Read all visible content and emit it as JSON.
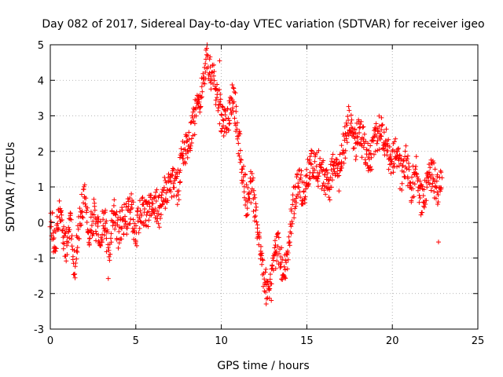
{
  "chart_data": {
    "type": "scatter",
    "title": "Day 082 of 2017, Sidereal Day-to-day VTEC variation (SDTVAR) for receiver igeo",
    "xlabel": "GPS time / hours",
    "ylabel": "SDTVAR / TECUs",
    "xlim": [
      0,
      25
    ],
    "ylim": [
      -3,
      5
    ],
    "xticks": [
      "0",
      "5",
      "10",
      "15",
      "20",
      "25"
    ],
    "yticks": [
      "-3",
      "-2",
      "-1",
      "0",
      "1",
      "2",
      "3",
      "4",
      "5"
    ],
    "grid": true,
    "marker": "plus",
    "color": "#ff0000",
    "series_trend": [
      [
        0.0,
        0.0
      ],
      [
        0.3,
        -0.5
      ],
      [
        0.6,
        0.4
      ],
      [
        0.9,
        -0.8
      ],
      [
        1.2,
        0.3
      ],
      [
        1.4,
        -1.4
      ],
      [
        1.7,
        0.0
      ],
      [
        2.0,
        0.6
      ],
      [
        2.3,
        -0.3
      ],
      [
        2.6,
        0.2
      ],
      [
        2.9,
        -0.5
      ],
      [
        3.2,
        0.3
      ],
      [
        3.4,
        -1.2
      ],
      [
        3.7,
        0.4
      ],
      [
        4.0,
        -0.3
      ],
      [
        4.3,
        0.1
      ],
      [
        4.7,
        0.4
      ],
      [
        5.0,
        -0.2
      ],
      [
        5.3,
        0.4
      ],
      [
        5.7,
        0.2
      ],
      [
        6.0,
        0.6
      ],
      [
        6.3,
        0.3
      ],
      [
        6.6,
        0.6
      ],
      [
        6.9,
        0.9
      ],
      [
        7.2,
        1.2
      ],
      [
        7.5,
        1.0
      ],
      [
        7.7,
        1.8
      ],
      [
        8.0,
        2.2
      ],
      [
        8.3,
        2.6
      ],
      [
        8.6,
        3.2
      ],
      [
        8.9,
        3.8
      ],
      [
        9.2,
        4.6
      ],
      [
        9.5,
        4.1
      ],
      [
        9.8,
        3.4
      ],
      [
        10.1,
        2.7
      ],
      [
        10.4,
        3.0
      ],
      [
        10.7,
        3.6
      ],
      [
        11.0,
        2.4
      ],
      [
        11.2,
        1.6
      ],
      [
        11.5,
        0.5
      ],
      [
        11.8,
        1.2
      ],
      [
        12.0,
        0.2
      ],
      [
        12.3,
        -0.8
      ],
      [
        12.5,
        -1.6
      ],
      [
        12.8,
        -1.9
      ],
      [
        13.1,
        -1.2
      ],
      [
        13.3,
        -0.6
      ],
      [
        13.6,
        -1.4
      ],
      [
        13.9,
        -0.9
      ],
      [
        14.2,
        0.5
      ],
      [
        14.5,
        1.2
      ],
      [
        14.8,
        0.8
      ],
      [
        15.1,
        1.4
      ],
      [
        15.4,
        1.7
      ],
      [
        15.7,
        1.5
      ],
      [
        16.0,
        1.3
      ],
      [
        16.3,
        1.0
      ],
      [
        16.6,
        1.8
      ],
      [
        16.9,
        1.3
      ],
      [
        17.2,
        2.2
      ],
      [
        17.5,
        3.0
      ],
      [
        17.8,
        2.2
      ],
      [
        18.1,
        2.5
      ],
      [
        18.4,
        2.0
      ],
      [
        18.7,
        1.8
      ],
      [
        19.0,
        2.3
      ],
      [
        19.3,
        2.6
      ],
      [
        19.6,
        2.3
      ],
      [
        19.9,
        1.7
      ],
      [
        20.2,
        2.1
      ],
      [
        20.5,
        1.3
      ],
      [
        20.8,
        1.7
      ],
      [
        21.1,
        1.0
      ],
      [
        21.4,
        1.4
      ],
      [
        21.7,
        0.6
      ],
      [
        22.0,
        1.0
      ],
      [
        22.3,
        1.4
      ],
      [
        22.6,
        0.9
      ],
      [
        22.9,
        1.2
      ]
    ]
  }
}
